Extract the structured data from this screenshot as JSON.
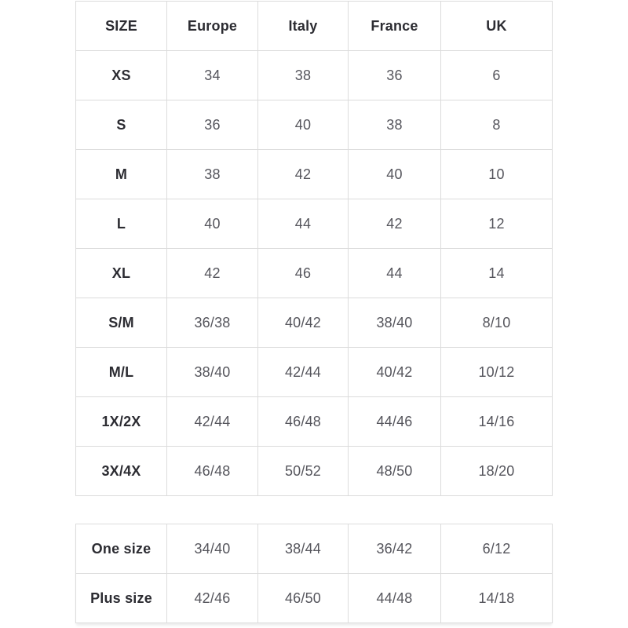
{
  "colors": {
    "background": "#ffffff",
    "border": "#dcdcdc",
    "header_text": "#2c2c32",
    "cell_text": "#55555c"
  },
  "conversion_table": {
    "headers": [
      "SIZE",
      "Europe",
      "Italy",
      "France",
      "UK"
    ],
    "rows": [
      [
        "XS",
        "34",
        "38",
        "36",
        "6"
      ],
      [
        "S",
        "36",
        "40",
        "38",
        "8"
      ],
      [
        "M",
        "38",
        "42",
        "40",
        "10"
      ],
      [
        "L",
        "40",
        "44",
        "42",
        "12"
      ],
      [
        "XL",
        "42",
        "46",
        "44",
        "14"
      ],
      [
        "S/M",
        "36/38",
        "40/42",
        "38/40",
        "8/10"
      ],
      [
        "M/L",
        "38/40",
        "42/44",
        "40/42",
        "10/12"
      ],
      [
        "1X/2X",
        "42/44",
        "46/48",
        "44/46",
        "14/16"
      ],
      [
        "3X/4X",
        "46/48",
        "50/52",
        "48/50",
        "18/20"
      ]
    ]
  },
  "special_sizes_table": {
    "rows": [
      [
        "One size",
        "34/40",
        "38/44",
        "36/42",
        "6/12"
      ],
      [
        "Plus size",
        "42/46",
        "46/50",
        "44/48",
        "14/18"
      ]
    ]
  }
}
